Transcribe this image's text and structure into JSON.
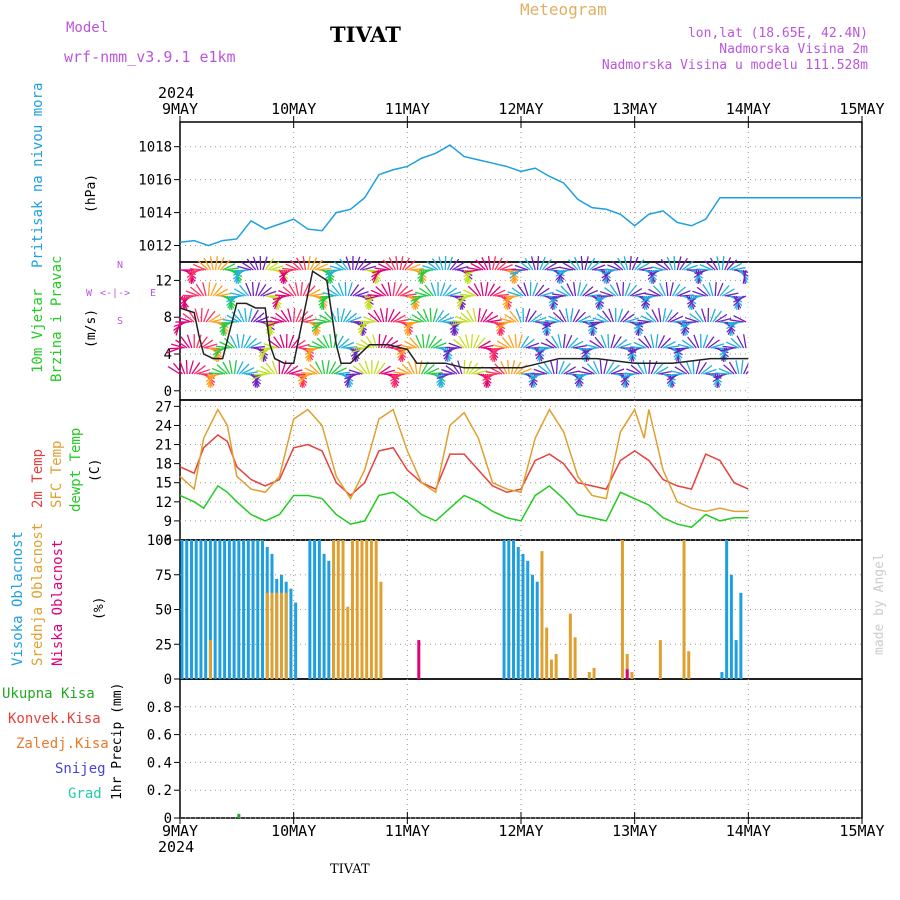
{
  "header": {
    "model_label": "Model",
    "model_name": "wrf-nmm_v3.9.1 e1km",
    "station": "TIVAT",
    "meteogram_label": "Meteogram",
    "lonlat": "lon,lat (18.65E, 42.4N)",
    "altitude": "Nadmorska Visina 2m",
    "model_altitude": "Nadmorska Visina u modelu 111.528m"
  },
  "footer": {
    "station": "TIVAT",
    "credit": "made by Angel"
  },
  "time_axis": {
    "year": "2024",
    "labels": [
      "9MAY",
      "10MAY",
      "11MAY",
      "12MAY",
      "13MAY",
      "14MAY",
      "15MAY"
    ]
  },
  "colors": {
    "pressure": "#1ea0e0",
    "temp": "#e8403c",
    "sfc_temp": "#e0a030",
    "dewpoint": "#22cc22",
    "cloud_high": "#1ea0e0",
    "cloud_mid": "#e0a030",
    "cloud_low": "#e0007a",
    "wind_label": "#22cc22",
    "compass": "#bb55dd",
    "header": "#bb55dd",
    "meteogram_title": "#e0b060"
  },
  "panels": {
    "pressure": {
      "label": "Pritisak na nivou mora",
      "unit": "(hPa)"
    },
    "wind": {
      "label1": "10m Vjetar",
      "label2": "Brzina i Pravac",
      "unit": "(m/s)",
      "compass_n": "N",
      "compass_w": "W",
      "compass_e": "E",
      "compass_s": "S"
    },
    "temp": {
      "label_2m": "2m Temp",
      "label_sfc": "SFC Temp",
      "label_dew": "dewpt Temp",
      "unit": "(C)"
    },
    "cloud": {
      "label_high": "Visoka Oblacnost",
      "label_mid": "Srednja Oblacnost",
      "label_low": "Niska Oblacnost",
      "unit": "(%)"
    },
    "precip": {
      "label_total": "Ukupna Kisa",
      "label_conv": "Konvek.Kisa",
      "label_frozen": "Zaledj.Kisa",
      "label_snow": "Snijeg",
      "label_hail": "Grad",
      "unit": "1hr Precip (mm)"
    }
  },
  "chart_data": [
    {
      "type": "line",
      "panel": "pressure",
      "ylim": [
        1011,
        1019.5
      ],
      "yticks": [
        1012,
        1014,
        1016,
        1018
      ],
      "series": [
        {
          "color": "#1ea0e0",
          "x": [
            0,
            3,
            6,
            9,
            12,
            15,
            18,
            21,
            24,
            27,
            30,
            33,
            36,
            39,
            42,
            45,
            48,
            51,
            54,
            57,
            60,
            63,
            66,
            69,
            72,
            75,
            78,
            81,
            84,
            87,
            90,
            93,
            96,
            99,
            102,
            105,
            108,
            111,
            114,
            117,
            120,
            123,
            126,
            129,
            132,
            135,
            138,
            141,
            144
          ],
          "y": [
            1012.2,
            1012.3,
            1012.0,
            1012.3,
            1012.4,
            1013.5,
            1013.0,
            1013.3,
            1013.6,
            1013.0,
            1012.9,
            1014.0,
            1014.2,
            1014.9,
            1016.3,
            1016.6,
            1016.8,
            1017.3,
            1017.6,
            1018.1,
            1017.4,
            1017.2,
            1017.0,
            1016.8,
            1016.5,
            1016.7,
            1016.2,
            1015.8,
            1014.8,
            1014.3,
            1014.2,
            1013.9,
            1013.2,
            1013.9,
            1014.1,
            1013.4,
            1013.2,
            1013.6,
            1014.9,
            1014.9,
            1014.9,
            1014.9,
            1014.9,
            1014.9,
            1014.9,
            1014.9,
            1014.9,
            1014.9,
            1014.9
          ]
        }
      ]
    },
    {
      "type": "line",
      "panel": "wind",
      "ylim": [
        -1,
        14
      ],
      "yticks": [
        0,
        4,
        8,
        12
      ],
      "series": [
        {
          "color": "#222222",
          "x": [
            0,
            3,
            4,
            5,
            7,
            9,
            12,
            14,
            16,
            18,
            19,
            20,
            22,
            24,
            28,
            31,
            33,
            34,
            36,
            37,
            40,
            44,
            48,
            50,
            54,
            56,
            60,
            62,
            66,
            72,
            80,
            88,
            96,
            104,
            112,
            118,
            120
          ],
          "y": [
            9,
            8.5,
            6,
            4,
            3.5,
            3.5,
            9.5,
            9.5,
            9,
            9,
            5,
            3.5,
            3,
            3,
            13,
            12,
            5,
            3,
            3,
            3.5,
            5,
            5,
            4.5,
            3,
            3,
            3,
            2.5,
            2.5,
            2.5,
            2.5,
            3.5,
            3.5,
            3,
            3,
            3.5,
            3.5,
            3.5
          ]
        }
      ]
    },
    {
      "type": "line",
      "panel": "temp",
      "ylim": [
        6,
        28
      ],
      "yticks": [
        6,
        9,
        12,
        15,
        18,
        21,
        24,
        27
      ],
      "series": [
        {
          "color": "#e8403c",
          "x": [
            0,
            3,
            5,
            8,
            10,
            12,
            15,
            18,
            21,
            24,
            27,
            30,
            33,
            36,
            39,
            42,
            45,
            48,
            51,
            54,
            57,
            60,
            63,
            66,
            69,
            72,
            75,
            78,
            81,
            84,
            87,
            90,
            93,
            96,
            99,
            102,
            105,
            108,
            111,
            114,
            117,
            120
          ],
          "y": [
            17.5,
            16.5,
            20.5,
            22.5,
            21.5,
            17.5,
            15.5,
            14.5,
            15.5,
            20.5,
            21,
            20,
            15,
            13,
            15,
            20,
            20.5,
            17,
            15,
            14,
            19.5,
            19.5,
            17,
            14.5,
            13.5,
            14,
            18.5,
            19.5,
            18,
            15,
            14.5,
            14,
            18.5,
            20,
            18.5,
            15.5,
            14.5,
            14,
            19.5,
            18.5,
            15,
            14
          ]
        },
        {
          "color": "#e0a030",
          "x": [
            0,
            3,
            5,
            8,
            10,
            12,
            15,
            18,
            21,
            24,
            27,
            30,
            33,
            36,
            39,
            42,
            45,
            48,
            51,
            54,
            57,
            60,
            63,
            66,
            69,
            72,
            75,
            78,
            81,
            84,
            87,
            90,
            93,
            96,
            98,
            99,
            102,
            105,
            108,
            111,
            114,
            117,
            120
          ],
          "y": [
            16,
            14,
            22,
            26.5,
            24,
            16,
            14,
            13.5,
            16,
            25,
            26.5,
            24,
            16,
            12.5,
            17,
            25,
            26.5,
            20,
            15,
            13.5,
            24,
            26,
            22,
            15,
            14,
            13.5,
            22,
            26.5,
            23,
            16,
            13,
            12.5,
            23,
            26.5,
            22,
            26.5,
            17,
            12,
            11,
            10.5,
            11,
            10.5,
            10.5
          ]
        },
        {
          "color": "#22cc22",
          "x": [
            0,
            3,
            5,
            8,
            10,
            12,
            15,
            18,
            21,
            24,
            27,
            30,
            33,
            36,
            39,
            42,
            45,
            48,
            51,
            54,
            57,
            60,
            63,
            66,
            69,
            72,
            75,
            78,
            81,
            84,
            87,
            90,
            93,
            96,
            99,
            102,
            105,
            108,
            111,
            114,
            117,
            120
          ],
          "y": [
            13,
            12,
            11,
            14.5,
            13.5,
            12,
            10,
            9,
            10,
            13,
            13,
            12.5,
            10,
            8.5,
            9,
            13,
            13.5,
            12,
            10,
            9,
            11,
            13,
            12,
            10.5,
            9.5,
            9,
            13,
            14.5,
            12.5,
            10,
            9.5,
            9,
            13.5,
            12.5,
            11.5,
            9.5,
            8.5,
            8,
            10,
            9,
            9.5,
            9.5
          ]
        }
      ]
    },
    {
      "type": "bar",
      "panel": "cloud",
      "ylim": [
        0,
        100
      ],
      "yticks": [
        0,
        25,
        50,
        75,
        100
      ],
      "series": [
        {
          "name": "Visoka Oblacnost",
          "color": "#1ea0e0",
          "x": [
            0,
            1,
            2,
            3,
            4,
            5,
            6,
            7,
            8,
            9,
            10,
            11,
            12,
            13,
            14,
            15,
            16,
            17,
            18,
            19,
            20,
            21,
            22,
            23,
            24,
            27,
            28,
            29,
            30,
            31,
            32,
            68,
            69,
            70,
            71,
            72,
            73,
            74,
            75,
            114,
            115,
            116,
            117,
            118
          ],
          "y": [
            100,
            100,
            100,
            100,
            100,
            100,
            100,
            100,
            100,
            100,
            100,
            100,
            100,
            100,
            100,
            100,
            100,
            100,
            95,
            90,
            72,
            75,
            70,
            65,
            55,
            100,
            100,
            100,
            90,
            85,
            80,
            100,
            100,
            100,
            95,
            90,
            85,
            75,
            70,
            5,
            100,
            75,
            28,
            62
          ]
        },
        {
          "name": "Srednja Oblacnost",
          "color": "#e0a030",
          "x": [
            6,
            18,
            19,
            20,
            21,
            22,
            32,
            33,
            34,
            35,
            36,
            37,
            38,
            39,
            40,
            41,
            42,
            76,
            77,
            78,
            79,
            82,
            83,
            86,
            87,
            93,
            94,
            95,
            101,
            106,
            107
          ],
          "y": [
            28,
            62,
            62,
            62,
            62,
            62,
            100,
            100,
            100,
            52,
            100,
            100,
            100,
            100,
            100,
            100,
            70,
            92,
            37,
            14,
            18,
            47,
            30,
            5,
            8,
            100,
            18,
            5,
            28,
            100,
            20
          ]
        },
        {
          "name": "Niska Oblacnost",
          "color": "#e0007a",
          "x": [
            50,
            94
          ],
          "y": [
            28,
            7
          ]
        }
      ]
    },
    {
      "type": "bar",
      "panel": "precip",
      "ylim": [
        0,
        1
      ],
      "yticks": [
        0,
        0.2,
        0.4,
        0.6,
        0.8
      ],
      "series": [
        {
          "name": "Ukupna Kisa",
          "color": "#22aa22",
          "x": [
            12
          ],
          "y": [
            0.03
          ]
        }
      ]
    }
  ]
}
